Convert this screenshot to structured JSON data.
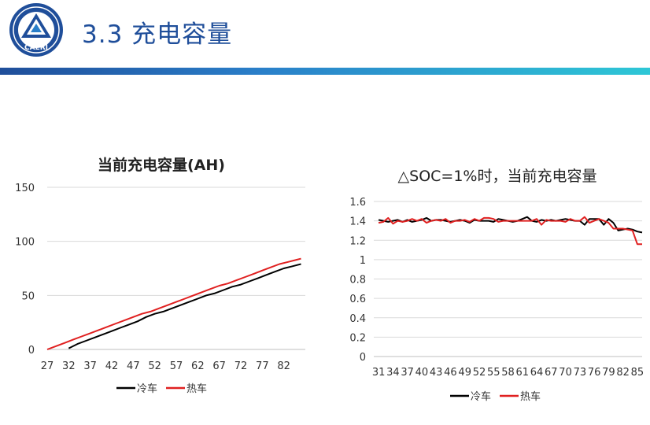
{
  "header": {
    "title": "3.3 充电容量",
    "logo_text": "CAERI",
    "accent_color": "#1f4e9a",
    "bar_colors": [
      "#1f4e9a",
      "#2ec7d6"
    ]
  },
  "chart_data": [
    {
      "type": "line",
      "title": "当前充电容量(AH)",
      "ylim": [
        0,
        150
      ],
      "yticks": [
        0,
        50,
        100,
        150
      ],
      "xlim": [
        27,
        87
      ],
      "xticks": [
        27,
        32,
        37,
        42,
        47,
        52,
        57,
        62,
        67,
        72,
        77,
        82
      ],
      "grid": true,
      "legend_position": "bottom",
      "series": [
        {
          "name": "冷车",
          "color": "#000000",
          "x": [
            32,
            33,
            34,
            36,
            38,
            40,
            42,
            44,
            46,
            48,
            50,
            52,
            54,
            56,
            58,
            60,
            62,
            64,
            66,
            68,
            70,
            72,
            74,
            76,
            78,
            80,
            82,
            84,
            86
          ],
          "y": [
            1,
            3,
            5,
            8,
            11,
            14,
            17,
            20,
            23,
            26,
            30,
            33,
            35,
            38,
            41,
            44,
            47,
            50,
            52,
            55,
            58,
            60,
            63,
            66,
            69,
            72,
            75,
            77,
            79
          ]
        },
        {
          "name": "热车",
          "color": "#e02020",
          "x": [
            27,
            29,
            31,
            33,
            35,
            37,
            39,
            41,
            43,
            45,
            47,
            49,
            51,
            53,
            55,
            57,
            59,
            61,
            63,
            65,
            67,
            69,
            71,
            73,
            75,
            77,
            79,
            81,
            83,
            85,
            86
          ],
          "y": [
            0,
            3,
            6,
            9,
            12,
            15,
            18,
            21,
            24,
            27,
            30,
            33,
            35,
            38,
            41,
            44,
            47,
            50,
            53,
            56,
            59,
            61,
            64,
            67,
            70,
            73,
            76,
            79,
            81,
            83,
            84
          ]
        }
      ]
    },
    {
      "type": "line",
      "title": "△SOC=1%时，当前充电容量",
      "ylim": [
        0,
        1.6
      ],
      "yticks": [
        "0",
        "0.2",
        "0.4",
        "0.6",
        "0.8",
        "1",
        "1.2",
        "1.4",
        "1.6"
      ],
      "xlim": [
        30,
        86
      ],
      "xticks": [
        31,
        34,
        37,
        40,
        43,
        46,
        49,
        52,
        55,
        58,
        61,
        64,
        67,
        70,
        73,
        76,
        79,
        82,
        85
      ],
      "grid": true,
      "legend_position": "bottom",
      "series": [
        {
          "name": "冷车",
          "color": "#000000",
          "x": [
            31,
            32,
            33,
            34,
            35,
            36,
            37,
            38,
            39,
            40,
            41,
            42,
            43,
            44,
            45,
            46,
            47,
            48,
            49,
            50,
            51,
            52,
            53,
            54,
            55,
            56,
            57,
            58,
            59,
            60,
            61,
            62,
            63,
            64,
            65,
            66,
            67,
            68,
            69,
            70,
            71,
            72,
            73,
            74,
            75,
            76,
            77,
            78,
            79,
            80,
            81,
            82,
            83,
            84,
            85,
            86
          ],
          "y": [
            1.41,
            1.4,
            1.39,
            1.4,
            1.41,
            1.39,
            1.41,
            1.39,
            1.4,
            1.41,
            1.43,
            1.4,
            1.41,
            1.41,
            1.4,
            1.39,
            1.4,
            1.41,
            1.4,
            1.38,
            1.41,
            1.4,
            1.4,
            1.4,
            1.39,
            1.42,
            1.41,
            1.4,
            1.39,
            1.4,
            1.42,
            1.44,
            1.4,
            1.39,
            1.41,
            1.4,
            1.41,
            1.4,
            1.41,
            1.42,
            1.41,
            1.4,
            1.4,
            1.36,
            1.42,
            1.42,
            1.42,
            1.36,
            1.42,
            1.38,
            1.3,
            1.31,
            1.32,
            1.31,
            1.29,
            1.28
          ]
        },
        {
          "name": "热车",
          "color": "#e02020",
          "x": [
            31,
            32,
            33,
            34,
            35,
            36,
            37,
            38,
            39,
            40,
            41,
            42,
            43,
            44,
            45,
            46,
            47,
            48,
            49,
            50,
            51,
            52,
            53,
            54,
            55,
            56,
            57,
            58,
            59,
            60,
            61,
            62,
            63,
            64,
            65,
            66,
            67,
            68,
            69,
            70,
            71,
            72,
            73,
            74,
            75,
            76,
            77,
            78,
            79,
            80,
            81,
            82,
            83,
            84,
            85,
            86
          ],
          "y": [
            1.38,
            1.39,
            1.43,
            1.37,
            1.4,
            1.39,
            1.4,
            1.42,
            1.4,
            1.42,
            1.38,
            1.4,
            1.41,
            1.4,
            1.42,
            1.38,
            1.4,
            1.4,
            1.41,
            1.39,
            1.42,
            1.4,
            1.43,
            1.43,
            1.42,
            1.39,
            1.4,
            1.4,
            1.4,
            1.4,
            1.4,
            1.4,
            1.4,
            1.42,
            1.36,
            1.41,
            1.4,
            1.4,
            1.4,
            1.39,
            1.42,
            1.4,
            1.4,
            1.44,
            1.38,
            1.4,
            1.42,
            1.4,
            1.38,
            1.32,
            1.32,
            1.32,
            1.31,
            1.3,
            1.16,
            1.16
          ]
        }
      ]
    }
  ]
}
